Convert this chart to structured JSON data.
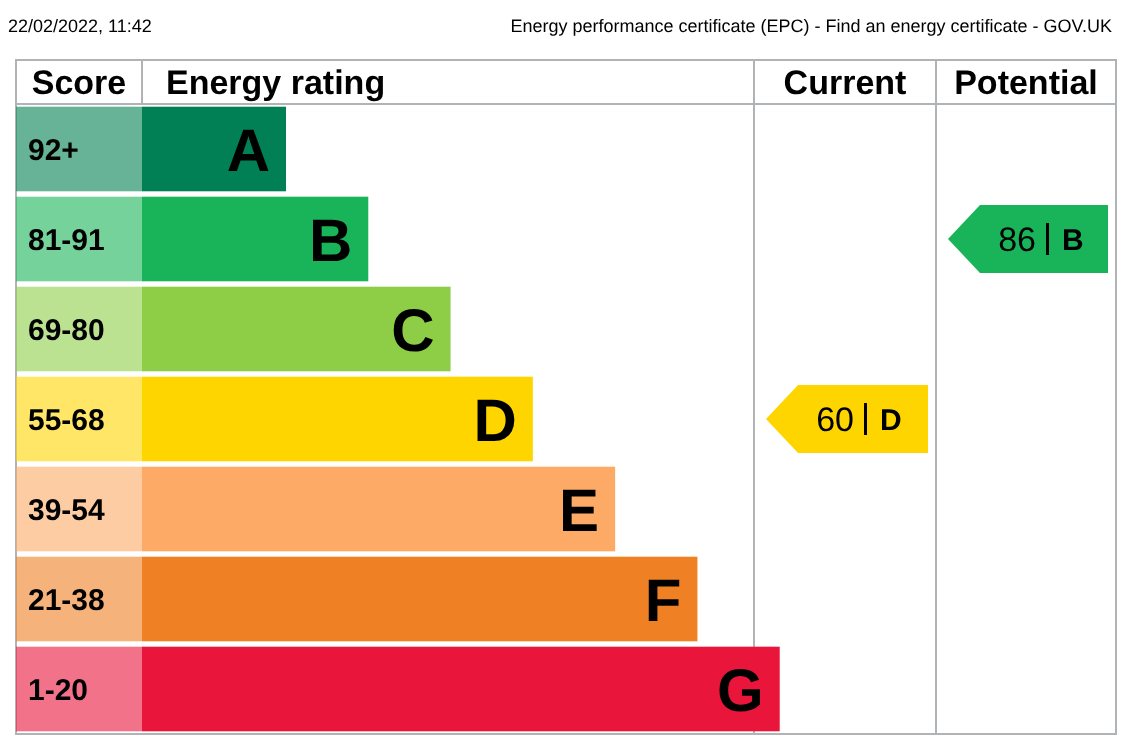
{
  "chart_data": {
    "type": "other",
    "title": "Energy performance certificate (EPC) - Find an energy certificate - GOV.UK",
    "subtitle": "22/02/2022, 11:42",
    "ylabel": "Score",
    "xlabel": "Energy rating",
    "categories": [
      "92+",
      "81-91",
      "69-80",
      "55-68",
      "39-54",
      "21-38",
      "1-20"
    ],
    "value_labels": [
      "A",
      "B",
      "C",
      "D",
      "E",
      "F",
      "G"
    ],
    "colors": [
      "#008054",
      "#19b459",
      "#8dce46",
      "#ffd500",
      "#fcaa65",
      "#ef8023",
      "#e9153b"
    ],
    "annotations": [
      "Current",
      "Potential"
    ],
    "data_labels": true,
    "series": [
      {
        "values": [
          null,
          null,
          null,
          60,
          null,
          null,
          null
        ]
      },
      {
        "values": [
          null,
          86,
          null,
          null,
          null,
          null,
          null
        ]
      }
    ]
  }
}
